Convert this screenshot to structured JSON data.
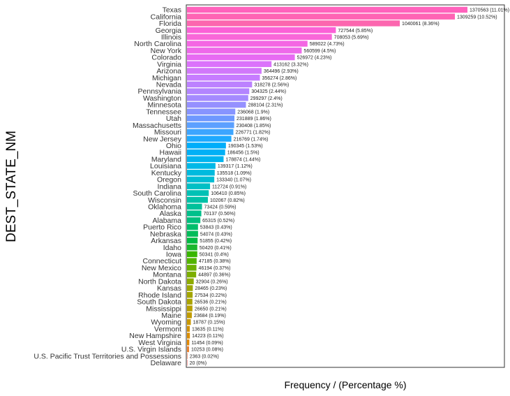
{
  "chart_data": {
    "type": "bar",
    "orientation": "horizontal",
    "xlabel": "Frequency / (Percentage %)",
    "ylabel": "DEST_STATE_NM",
    "x_axis_ticks": "none",
    "grid": false,
    "legend": "none",
    "xlim": [
      0,
      1370563
    ],
    "categories": [
      "Texas",
      "California",
      "Florida",
      "Georgia",
      "Illinois",
      "North Carolina",
      "New York",
      "Colorado",
      "Virginia",
      "Arizona",
      "Michigan",
      "Nevada",
      "Pennsylvania",
      "Washington",
      "Minnesota",
      "Tennessee",
      "Utah",
      "Massachusetts",
      "Missouri",
      "New Jersey",
      "Ohio",
      "Hawaii",
      "Maryland",
      "Louisiana",
      "Kentucky",
      "Oregon",
      "Indiana",
      "South Carolina",
      "Wisconsin",
      "Oklahoma",
      "Alaska",
      "Alabama",
      "Puerto Rico",
      "Nebraska",
      "Arkansas",
      "Idaho",
      "Iowa",
      "Connecticut",
      "New Mexico",
      "Montana",
      "North Dakota",
      "Kansas",
      "Rhode Island",
      "South Dakota",
      "Mississippi",
      "Maine",
      "Wyoming",
      "Vermont",
      "New Hampshire",
      "West Virginia",
      "U.S. Virgin Islands",
      "U.S. Pacific Trust Territories and Possessions",
      "Delaware"
    ],
    "values": [
      1370563,
      1309259,
      1040061,
      727544,
      708053,
      589022,
      560599,
      526972,
      413162,
      364496,
      356274,
      318278,
      304325,
      299297,
      288104,
      236068,
      231889,
      230408,
      226771,
      216769,
      190345,
      186456,
      178874,
      139317,
      135518,
      133340,
      112724,
      106410,
      102067,
      73424,
      70137,
      65315,
      53843,
      54074,
      51855,
      50420,
      50341,
      47185,
      46194,
      44897,
      32904,
      28465,
      27534,
      26536,
      26650,
      23684,
      18787,
      13635,
      14223,
      11454,
      10253,
      2363,
      20
    ],
    "data_labels": [
      "1370563 (11.01%)",
      "1309259 (10.52%)",
      "1040061 (8.36%)",
      "727544 (5.85%)",
      "708053 (5.69%)",
      "589022 (4.73%)",
      "560599 (4.5%)",
      "526972 (4.23%)",
      "413162 (3.32%)",
      "364496 (2.93%)",
      "356274 (2.86%)",
      "318278 (2.56%)",
      "304325 (2.44%)",
      "299297 (2.4%)",
      "288104 (2.31%)",
      "236068 (1.9%)",
      "231889 (1.86%)",
      "230408 (1.85%)",
      "226771 (1.82%)",
      "216769 (1.74%)",
      "190345 (1.53%)",
      "186456 (1.5%)",
      "178874 (1.44%)",
      "139317 (1.12%)",
      "135518 (1.09%)",
      "133340 (1.07%)",
      "112724 (0.91%)",
      "106410 (0.85%)",
      "102067 (0.82%)",
      "73424 (0.59%)",
      "70137 (0.56%)",
      "65315 (0.52%)",
      "53843 (0.43%)",
      "54074 (0.43%)",
      "51855 (0.42%)",
      "50420 (0.41%)",
      "50341 (0.4%)",
      "47185 (0.38%)",
      "46194 (0.37%)",
      "44897 (0.36%)",
      "32904 (0.26%)",
      "28465 (0.23%)",
      "27534 (0.22%)",
      "26536 (0.21%)",
      "26650 (0.21%)",
      "23684 (0.19%)",
      "18787 (0.15%)",
      "13635 (0.11%)",
      "14223 (0.11%)",
      "11454 (0.09%)",
      "10253 (0.08%)",
      "2363 (0.02%)",
      "20 (0%)"
    ],
    "colors": [
      "#FF62BC",
      "#FF64B4",
      "#FC66AF",
      "#FB61D7",
      "#F967D9",
      "#F466E3",
      "#EE69EA",
      "#E76BF3",
      "#DB72FB",
      "#D178FA",
      "#C77CFF",
      "#BC81FF",
      "#B385FF",
      "#A58AFF",
      "#9590FF",
      "#8794FF",
      "#6E98FF",
      "#5CA0FF",
      "#3DA5FF",
      "#1FA9FF",
      "#00ADFA",
      "#00B0F6",
      "#00B4EF",
      "#00B8E7",
      "#00BADE",
      "#00BDD4",
      "#00BFC4",
      "#00C1B5",
      "#00C1A7",
      "#00C19A",
      "#00C08B",
      "#00BF7D",
      "#00BE6C",
      "#00BC59",
      "#00BA42",
      "#1BB72E",
      "#39B600",
      "#53B400",
      "#6BB100",
      "#7CAE00",
      "#8EAB00",
      "#9DA700",
      "#A3A500",
      "#ABA300",
      "#B79F00",
      "#C09B00",
      "#C99800",
      "#D39200",
      "#DB8E00",
      "#E38900",
      "#EA8331",
      "#F17D50",
      "#F8766D"
    ]
  }
}
